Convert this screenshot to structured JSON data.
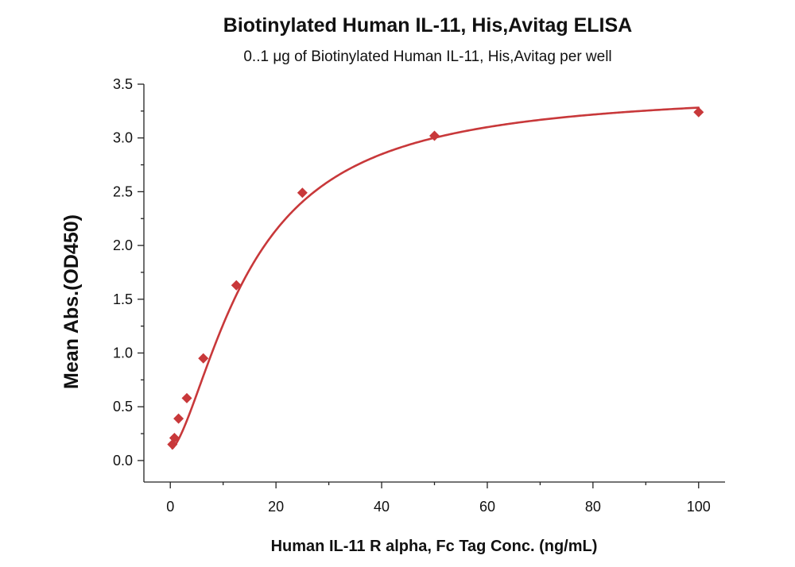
{
  "chart_data": {
    "type": "scatter",
    "title": "Biotinylated Human IL-11, His,Avitag ELISA",
    "subtitle": "0..1 μg of Biotinylated Human IL-11, His,Avitag per well",
    "xlabel": "Human IL-11 R alpha, Fc Tag Conc. (ng/mL)",
    "ylabel": "Mean Abs.(OD450)",
    "xlim": [
      -5,
      105
    ],
    "ylim": [
      -0.2,
      3.5
    ],
    "x_ticks": [
      0,
      20,
      40,
      60,
      80,
      100
    ],
    "x_tick_labels": [
      "0",
      "20",
      "40",
      "60",
      "80",
      "100"
    ],
    "y_ticks": [
      0.0,
      0.5,
      1.0,
      1.5,
      2.0,
      2.5,
      3.0,
      3.5
    ],
    "y_tick_labels": [
      "0.0",
      "0.5",
      "1.0",
      "1.5",
      "2.0",
      "2.5",
      "3.0",
      "3.5"
    ],
    "grid": false,
    "legend": "none",
    "marker": "diamond",
    "color": "#c8383a",
    "series": [
      {
        "x": [
          0.39,
          0.78,
          1.56,
          3.125,
          6.25,
          12.5,
          25,
          50,
          100
        ],
        "y": [
          0.15,
          0.21,
          0.39,
          0.58,
          0.95,
          1.63,
          2.49,
          3.02,
          3.24
        ],
        "fit": "4PL",
        "fit_params": {
          "bottom": 0.1,
          "top": 3.45,
          "ec50": 15.0,
          "hill": 1.55
        }
      }
    ]
  }
}
